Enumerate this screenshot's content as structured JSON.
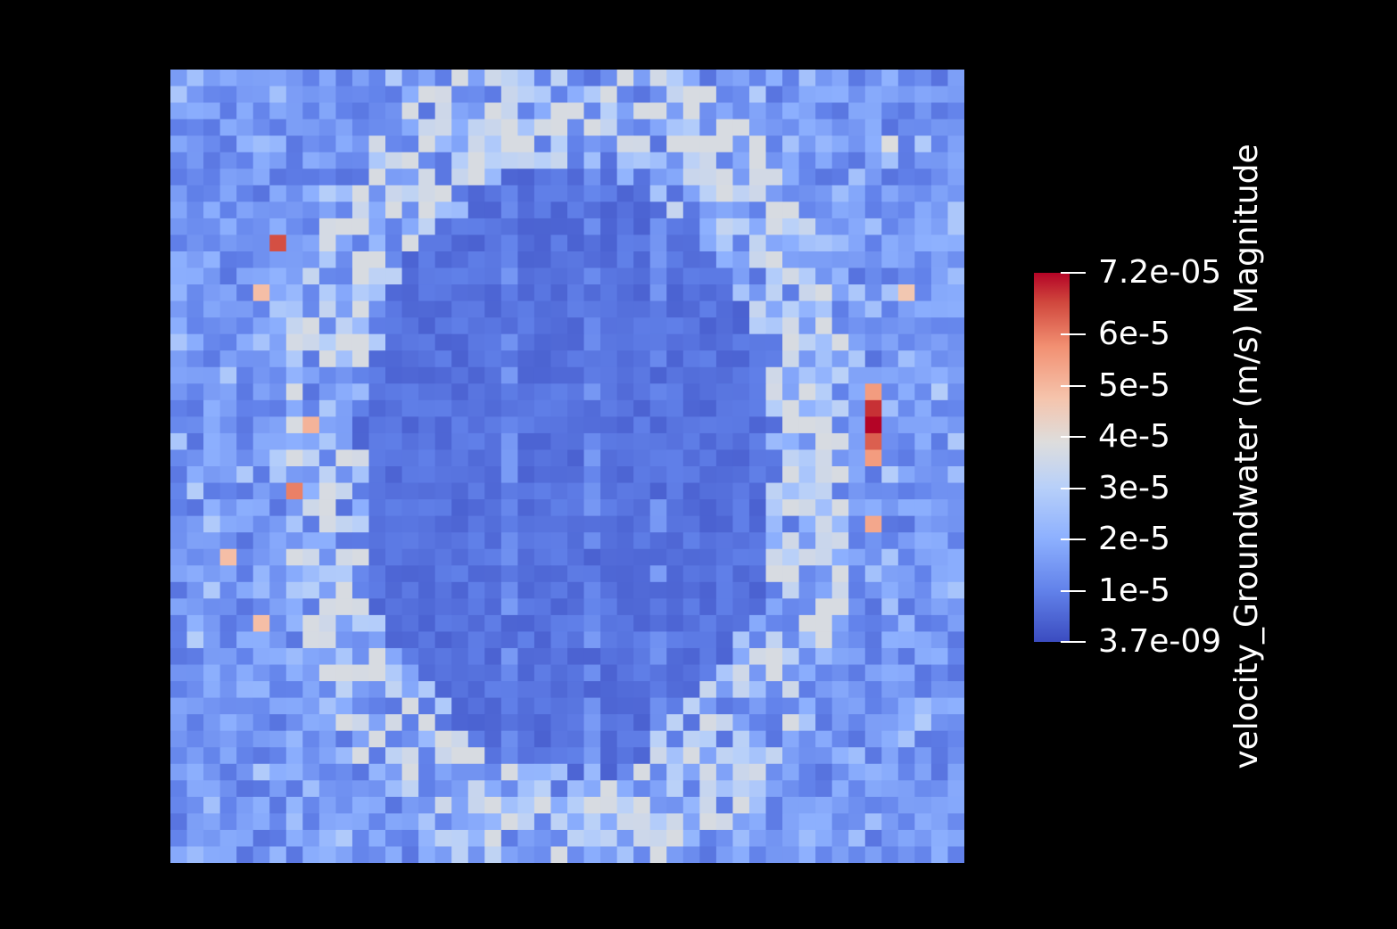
{
  "chart_data": {
    "type": "heatmap",
    "title": "",
    "xlabel": "",
    "ylabel": "",
    "grid": false,
    "scalar_field": "velocity_Groundwater (m/s) Magnitude",
    "colorbar": {
      "title": "velocity_Groundwater (m/s) Magnitude",
      "min": 3.7e-09,
      "max": 7.2e-05,
      "placement": "right",
      "ticks": [
        {
          "value": 7.2e-05,
          "label": "7.2e-05"
        },
        {
          "value": 6e-05,
          "label": "6e-5"
        },
        {
          "value": 5e-05,
          "label": "5e-5"
        },
        {
          "value": 4e-05,
          "label": "4e-5"
        },
        {
          "value": 3e-05,
          "label": "3e-5"
        },
        {
          "value": 2e-05,
          "label": "2e-5"
        },
        {
          "value": 1e-05,
          "label": "1e-5"
        },
        {
          "value": 3.7e-09,
          "label": "3.7e-09"
        }
      ],
      "colormap": [
        "#3b4cc0",
        "#6282ea",
        "#8db0fe",
        "#b8d0f9",
        "#dddddd",
        "#f5c4ac",
        "#f29072",
        "#d0473d",
        "#b40426"
      ]
    },
    "grid_size": [
      48,
      48
    ],
    "hotspots": [
      {
        "col": 6,
        "row": 10,
        "value": 6.2e-05
      },
      {
        "col": 5,
        "row": 13,
        "value": 4.6e-05
      },
      {
        "col": 8,
        "row": 21,
        "value": 4.8e-05
      },
      {
        "col": 7,
        "row": 25,
        "value": 5.6e-05
      },
      {
        "col": 3,
        "row": 29,
        "value": 4.6e-05
      },
      {
        "col": 5,
        "row": 33,
        "value": 4.6e-05
      },
      {
        "col": 42,
        "row": 19,
        "value": 5.2e-05
      },
      {
        "col": 42,
        "row": 20,
        "value": 6.6e-05
      },
      {
        "col": 42,
        "row": 21,
        "value": 7.2e-05
      },
      {
        "col": 42,
        "row": 22,
        "value": 6e-05
      },
      {
        "col": 42,
        "row": 23,
        "value": 5.2e-05
      },
      {
        "col": 42,
        "row": 27,
        "value": 5e-05
      },
      {
        "col": 44,
        "row": 13,
        "value": 4.4e-05
      },
      {
        "col": 43,
        "row": 4,
        "value": 3.6e-05
      }
    ]
  }
}
